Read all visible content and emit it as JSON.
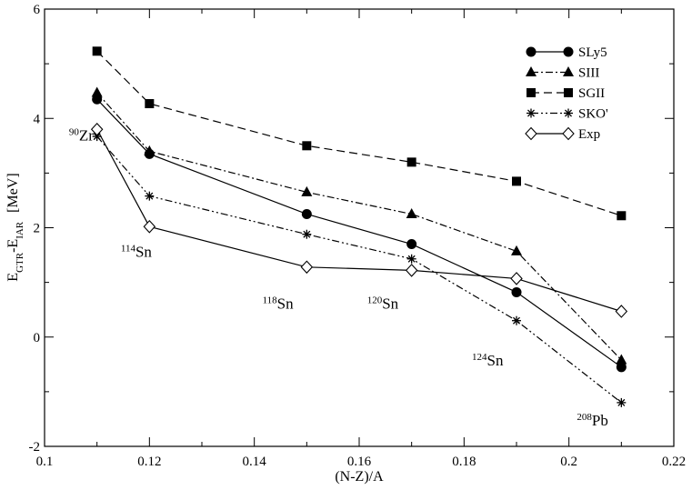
{
  "chart_data": {
    "type": "line",
    "xlabel": "(N-Z)/A",
    "ylabel": {
      "base": "E",
      "sub1": "GTR",
      "mid": "-E",
      "sub2": "IAR",
      "unit": "[MeV]"
    },
    "xlim": [
      0.1,
      0.22
    ],
    "ylim": [
      -2,
      6
    ],
    "xticks": [
      "0.1",
      "0.12",
      "0.14",
      "0.16",
      "0.18",
      "0.2",
      "0.22"
    ],
    "yticks": [
      "-2",
      "0",
      "2",
      "4",
      "6"
    ],
    "grid": false,
    "legend_position": "top-right",
    "x": [
      0.11,
      0.12,
      0.15,
      0.17,
      0.19,
      0.21
    ],
    "series": [
      {
        "name": "SLy5",
        "values": [
          4.35,
          3.35,
          2.25,
          1.7,
          0.82,
          -0.55
        ],
        "marker": "circle",
        "dash": "solid"
      },
      {
        "name": "SIII",
        "values": [
          4.47,
          3.4,
          2.65,
          2.25,
          1.57,
          -0.42
        ],
        "marker": "triangle",
        "dash": "dashdot"
      },
      {
        "name": "SGII",
        "values": [
          5.23,
          4.27,
          3.5,
          3.2,
          2.85,
          2.22
        ],
        "marker": "square",
        "dash": "dashed"
      },
      {
        "name": "SKO'",
        "values": [
          3.67,
          2.58,
          1.88,
          1.43,
          0.3,
          -1.2
        ],
        "marker": "star",
        "dash": "dashdotdot"
      },
      {
        "name": "Exp",
        "values": [
          3.8,
          2.02,
          1.28,
          1.22,
          1.07,
          0.47
        ],
        "marker": "diamond",
        "dash": "solid"
      }
    ],
    "annotations": [
      {
        "mass": "90",
        "element": "Zr",
        "x": 0.107,
        "y": 3.6
      },
      {
        "mass": "114",
        "element": "Sn",
        "x": 0.1175,
        "y": 1.47
      },
      {
        "mass": "118",
        "element": "Sn",
        "x": 0.1445,
        "y": 0.52
      },
      {
        "mass": "120",
        "element": "Sn",
        "x": 0.1645,
        "y": 0.52
      },
      {
        "mass": "124",
        "element": "Sn",
        "x": 0.1845,
        "y": -0.52
      },
      {
        "mass": "208",
        "element": "Pb",
        "x": 0.2045,
        "y": -1.62
      }
    ]
  }
}
